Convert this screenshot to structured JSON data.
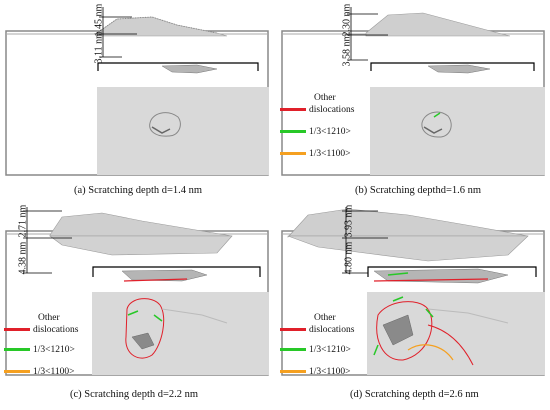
{
  "colors": {
    "other": "#e0202a",
    "burgers": "#28c828",
    "shockley": "#f5a020",
    "substrate": "#d9d9d9",
    "atoms": "#9a9a9a"
  },
  "legend": {
    "other_line1": "Other",
    "other_line2": "dislocations",
    "burgers": "1/3<1210>",
    "shockley": "1/3<1100>"
  },
  "panels": [
    {
      "caption": "(a) Scratching depth d=1.4 nm",
      "dim_top": "1.45 nm",
      "dim_bottom": "3.11 nm"
    },
    {
      "caption": "(b)  Scratching depthd=1.6 nm",
      "dim_top": "2.30 nm",
      "dim_bottom": "3.58 nm"
    },
    {
      "caption": "(c)  Scratching depth d=2.2 nm",
      "dim_top": "2.71 nm",
      "dim_bottom": "4.38 nm"
    },
    {
      "caption": "(d)  Scratching depth d=2.6 nm",
      "dim_top": "3.93 nm",
      "dim_bottom": "4.80 nm"
    }
  ]
}
